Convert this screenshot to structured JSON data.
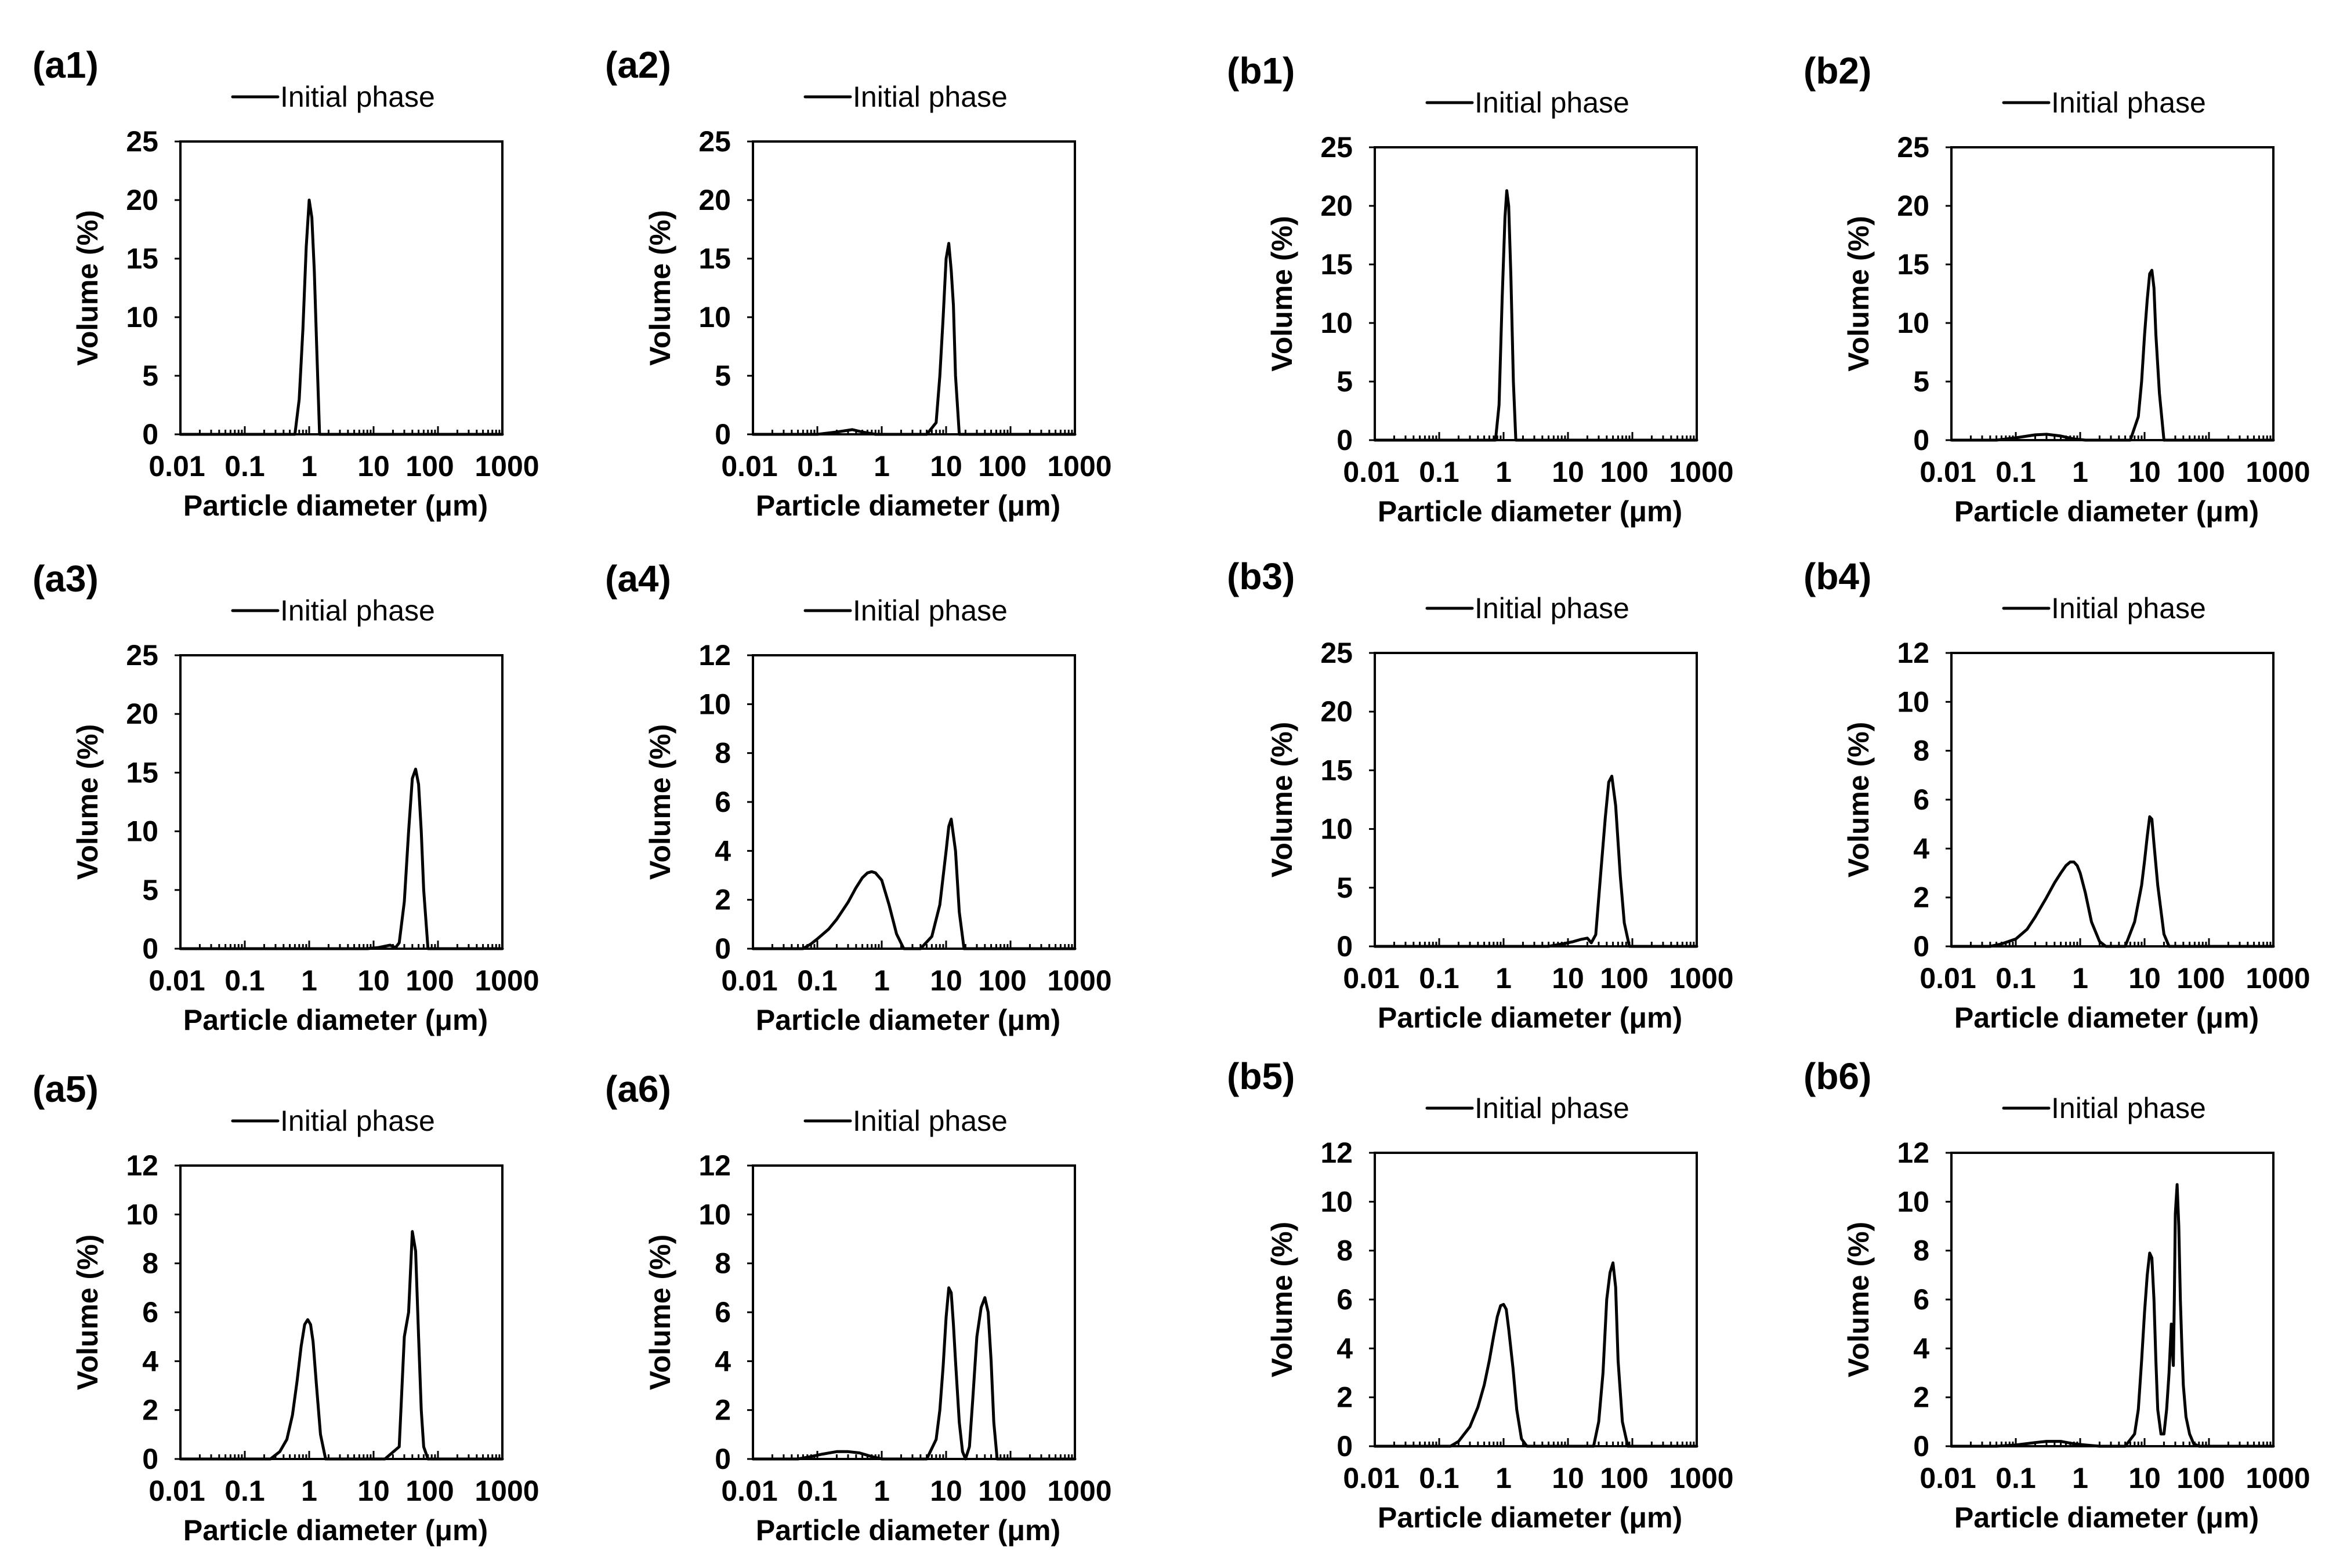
{
  "figure": {
    "xlabel": "Particle diameter (μm)",
    "ylabel": "Volume (%)",
    "legend_entry": "Initial phase",
    "x_tick_labels": [
      "0.01",
      "0.1",
      "1",
      "10",
      "100",
      "1000"
    ]
  },
  "chart_data": [
    {
      "id": "a1",
      "label": "(a1)",
      "type": "line",
      "title": "",
      "xscale": "log",
      "xlim": [
        0.01,
        1000
      ],
      "ylim": [
        0,
        25
      ],
      "yticks": [
        0,
        5,
        10,
        15,
        20,
        25
      ],
      "legend": "top-center",
      "series": [
        {
          "name": "Initial phase",
          "x": [
            0.01,
            0.6,
            0.7,
            0.8,
            0.9,
            1.0,
            1.1,
            1.2,
            1.3,
            1.45,
            1000
          ],
          "y": [
            0,
            0,
            3,
            9,
            16,
            20,
            18.5,
            14,
            8,
            0,
            0
          ]
        }
      ]
    },
    {
      "id": "a2",
      "label": "(a2)",
      "type": "line",
      "title": "",
      "xscale": "log",
      "xlim": [
        0.01,
        1000
      ],
      "ylim": [
        0,
        25
      ],
      "yticks": [
        0,
        5,
        10,
        15,
        20,
        25
      ],
      "legend": "top-center",
      "series": [
        {
          "name": "Initial phase",
          "x": [
            0.01,
            0.1,
            0.2,
            0.35,
            0.5,
            0.8,
            1.5,
            5,
            7,
            8,
            9,
            10,
            11,
            12,
            13,
            14,
            16,
            1000
          ],
          "y": [
            0,
            0,
            0.2,
            0.4,
            0.2,
            0,
            0,
            0,
            1,
            5,
            10,
            15,
            16.3,
            14,
            11,
            5,
            0,
            0
          ]
        }
      ]
    },
    {
      "id": "b1",
      "label": "(b1)",
      "type": "line",
      "title": "",
      "xscale": "log",
      "xlim": [
        0.01,
        1000
      ],
      "ylim": [
        0,
        25
      ],
      "yticks": [
        0,
        5,
        10,
        15,
        20,
        25
      ],
      "legend": "top-center",
      "series": [
        {
          "name": "Initial phase",
          "x": [
            0.01,
            0.75,
            0.85,
            0.95,
            1.05,
            1.12,
            1.2,
            1.3,
            1.42,
            1.55,
            1000
          ],
          "y": [
            0,
            0,
            3,
            12,
            19,
            21.3,
            20,
            14,
            5,
            0,
            0
          ]
        }
      ]
    },
    {
      "id": "b2",
      "label": "(b2)",
      "type": "line",
      "title": "",
      "xscale": "log",
      "xlim": [
        0.01,
        1000
      ],
      "ylim": [
        0,
        25
      ],
      "yticks": [
        0,
        5,
        10,
        15,
        20,
        25
      ],
      "legend": "top-center",
      "series": [
        {
          "name": "Initial phase",
          "x": [
            0.01,
            0.05,
            0.1,
            0.2,
            0.3,
            0.5,
            0.8,
            1.2,
            6,
            8,
            9,
            10,
            11,
            12,
            13,
            14,
            15,
            17,
            20,
            1000
          ],
          "y": [
            0,
            0,
            0.2,
            0.45,
            0.5,
            0.35,
            0.1,
            0,
            0,
            2,
            5,
            9,
            12,
            14.2,
            14.5,
            13,
            9,
            4,
            0,
            0
          ]
        }
      ]
    },
    {
      "id": "a3",
      "label": "(a3)",
      "type": "line",
      "title": "",
      "xscale": "log",
      "xlim": [
        0.01,
        1000
      ],
      "ylim": [
        0,
        25
      ],
      "yticks": [
        0,
        5,
        10,
        15,
        20,
        25
      ],
      "legend": "top-center",
      "series": [
        {
          "name": "Initial phase",
          "x": [
            0.01,
            8,
            12,
            18,
            22,
            25,
            30,
            35,
            40,
            45,
            50,
            55,
            60,
            70,
            1000
          ],
          "y": [
            0,
            0,
            0.1,
            0.3,
            0.1,
            0.5,
            4,
            10,
            14.5,
            15.3,
            14,
            10,
            5,
            0,
            0
          ]
        }
      ]
    },
    {
      "id": "a4",
      "label": "(a4)",
      "type": "line",
      "title": "",
      "xscale": "log",
      "xlim": [
        0.01,
        1000
      ],
      "ylim": [
        0,
        12
      ],
      "yticks": [
        0,
        2,
        4,
        6,
        8,
        10,
        12
      ],
      "legend": "top-center",
      "series": [
        {
          "name": "Initial phase",
          "x": [
            0.01,
            0.06,
            0.08,
            0.1,
            0.15,
            0.2,
            0.3,
            0.4,
            0.5,
            0.6,
            0.7,
            0.8,
            1.0,
            1.3,
            1.7,
            2.2,
            4,
            6,
            8,
            10,
            11,
            12,
            14,
            16,
            19,
            1000
          ],
          "y": [
            0,
            0,
            0.2,
            0.4,
            0.8,
            1.2,
            1.9,
            2.5,
            2.9,
            3.1,
            3.15,
            3.1,
            2.8,
            1.8,
            0.6,
            0,
            0,
            0.5,
            1.8,
            4,
            5,
            5.3,
            4,
            1.5,
            0,
            0
          ]
        }
      ]
    },
    {
      "id": "b3",
      "label": "(b3)",
      "type": "line",
      "title": "",
      "xscale": "log",
      "xlim": [
        0.01,
        1000
      ],
      "ylim": [
        0,
        25
      ],
      "yticks": [
        0,
        5,
        10,
        15,
        20,
        25
      ],
      "legend": "top-center",
      "series": [
        {
          "name": "Initial phase",
          "x": [
            0.01,
            5,
            8,
            12,
            16,
            20,
            23,
            27,
            32,
            38,
            43,
            48,
            55,
            65,
            75,
            90,
            1000
          ],
          "y": [
            0,
            0,
            0.2,
            0.4,
            0.6,
            0.7,
            0.3,
            1,
            6,
            11,
            14,
            14.5,
            12,
            6,
            2,
            0,
            0
          ]
        }
      ]
    },
    {
      "id": "b4",
      "label": "(b4)",
      "type": "line",
      "title": "",
      "xscale": "log",
      "xlim": [
        0.01,
        1000
      ],
      "ylim": [
        0,
        12
      ],
      "yticks": [
        0,
        2,
        4,
        6,
        8,
        10,
        12
      ],
      "legend": "top-center",
      "series": [
        {
          "name": "Initial phase",
          "x": [
            0.01,
            0.04,
            0.06,
            0.1,
            0.15,
            0.2,
            0.3,
            0.4,
            0.5,
            0.6,
            0.7,
            0.8,
            0.9,
            1.0,
            1.2,
            1.5,
            2.0,
            2.5,
            5,
            7,
            9,
            10,
            11,
            12,
            13,
            14,
            16,
            20,
            24,
            1000
          ],
          "y": [
            0,
            0,
            0.1,
            0.3,
            0.7,
            1.2,
            2.0,
            2.6,
            3.0,
            3.3,
            3.45,
            3.45,
            3.3,
            3.0,
            2.2,
            1.0,
            0.2,
            0,
            0,
            1,
            2.5,
            3.5,
            4.5,
            5.3,
            5.2,
            4.2,
            2.5,
            0.5,
            0,
            0
          ]
        }
      ]
    },
    {
      "id": "a5",
      "label": "(a5)",
      "type": "line",
      "title": "",
      "xscale": "log",
      "xlim": [
        0.01,
        1000
      ],
      "ylim": [
        0,
        12
      ],
      "yticks": [
        0,
        2,
        4,
        6,
        8,
        10,
        12
      ],
      "legend": "top-center",
      "series": [
        {
          "name": "Initial phase",
          "x": [
            0.01,
            0.25,
            0.35,
            0.45,
            0.55,
            0.65,
            0.75,
            0.85,
            0.95,
            1.05,
            1.15,
            1.3,
            1.5,
            1.8,
            15,
            25,
            30,
            35,
            40,
            45,
            50,
            55,
            60,
            70,
            1000
          ],
          "y": [
            0,
            0,
            0.3,
            0.8,
            1.8,
            3.2,
            4.6,
            5.5,
            5.7,
            5.5,
            4.8,
            3.0,
            1.0,
            0,
            0,
            0.5,
            5,
            6,
            9.3,
            8.5,
            5,
            2,
            0.5,
            0,
            0
          ]
        }
      ]
    },
    {
      "id": "a6",
      "label": "(a6)",
      "type": "line",
      "title": "",
      "xscale": "log",
      "xlim": [
        0.01,
        1000
      ],
      "ylim": [
        0,
        12
      ],
      "yticks": [
        0,
        2,
        4,
        6,
        8,
        10,
        12
      ],
      "legend": "top-center",
      "series": [
        {
          "name": "Initial phase",
          "x": [
            0.01,
            0.05,
            0.08,
            0.12,
            0.2,
            0.3,
            0.45,
            0.7,
            1.0,
            1.3,
            5,
            7,
            8,
            9,
            10,
            11,
            12,
            13,
            14,
            16,
            18,
            20,
            23,
            26,
            30,
            35,
            40,
            45,
            50,
            55,
            62,
            1000
          ],
          "y": [
            0,
            0,
            0.1,
            0.2,
            0.3,
            0.3,
            0.25,
            0.1,
            0,
            0,
            0,
            0.8,
            2,
            3.8,
            5.8,
            7.0,
            6.8,
            5.5,
            4,
            1.5,
            0.3,
            0,
            0.5,
            2.5,
            5,
            6.2,
            6.6,
            6,
            4,
            1.5,
            0,
            0
          ]
        }
      ]
    },
    {
      "id": "b5",
      "label": "(b5)",
      "type": "line",
      "title": "",
      "xscale": "log",
      "xlim": [
        0.01,
        1000
      ],
      "ylim": [
        0,
        12
      ],
      "yticks": [
        0,
        2,
        4,
        6,
        8,
        10,
        12
      ],
      "legend": "top-center",
      "series": [
        {
          "name": "Initial phase",
          "x": [
            0.01,
            0.15,
            0.2,
            0.3,
            0.4,
            0.5,
            0.6,
            0.7,
            0.8,
            0.9,
            1.0,
            1.1,
            1.2,
            1.4,
            1.6,
            1.9,
            2.3,
            25,
            30,
            35,
            40,
            45,
            50,
            55,
            60,
            70,
            85,
            1000
          ],
          "y": [
            0,
            0,
            0.2,
            0.8,
            1.6,
            2.5,
            3.5,
            4.5,
            5.3,
            5.75,
            5.8,
            5.6,
            4.8,
            3.2,
            1.5,
            0.3,
            0,
            0,
            1,
            3,
            6,
            7.1,
            7.5,
            6.5,
            3.5,
            1,
            0,
            0
          ]
        }
      ]
    },
    {
      "id": "b6",
      "label": "(b6)",
      "type": "line",
      "title": "",
      "xscale": "log",
      "xlim": [
        0.01,
        1000
      ],
      "ylim": [
        0,
        12
      ],
      "yticks": [
        0,
        2,
        4,
        6,
        8,
        10,
        12
      ],
      "legend": "top-center",
      "series": [
        {
          "name": "Initial phase",
          "x": [
            0.01,
            0.05,
            0.1,
            0.2,
            0.3,
            0.5,
            0.8,
            1.2,
            2,
            5,
            7,
            8,
            9,
            10,
            11,
            12,
            13,
            14,
            15,
            16,
            18,
            20,
            22,
            24,
            26,
            27,
            28,
            29,
            30,
            32,
            34,
            36,
            38,
            40,
            44,
            50,
            58,
            70,
            1000
          ],
          "y": [
            0,
            0,
            0.05,
            0.15,
            0.2,
            0.2,
            0.1,
            0.05,
            0,
            0,
            0.5,
            1.5,
            3.5,
            5.5,
            7,
            7.9,
            7.7,
            6,
            3.5,
            1.5,
            0.5,
            0.5,
            1.5,
            3,
            5,
            4,
            3.3,
            6,
            9.5,
            10.7,
            9,
            6,
            4,
            2.5,
            1.2,
            0.5,
            0.1,
            0,
            0
          ]
        }
      ]
    }
  ]
}
